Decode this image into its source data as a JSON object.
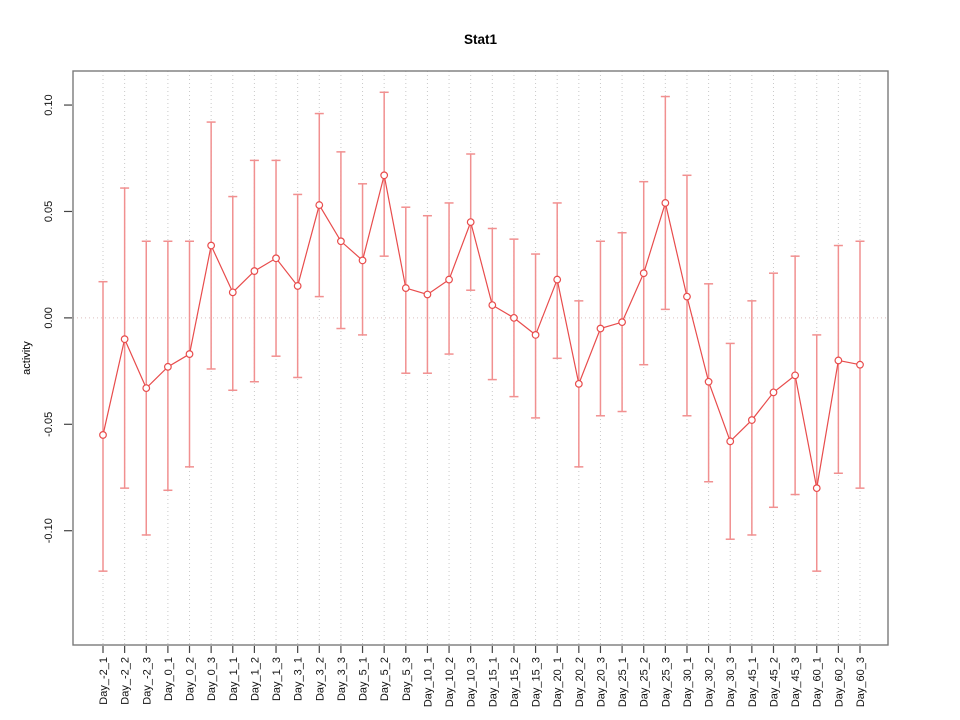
{
  "title": "Stat1",
  "chart_data": {
    "type": "line",
    "title": "Stat1",
    "xlabel": "",
    "ylabel": "activity",
    "marker": "open-circle",
    "error_bars": true,
    "grid": "vertical-dotted",
    "zero_line_dotted": true,
    "legend": "none",
    "ylim": [
      -0.1537,
      0.116
    ],
    "ytick_values": [
      0.1,
      0.05,
      0.0,
      -0.05,
      -0.1
    ],
    "ytick_labels": [
      "0.10",
      "0.05",
      "0.00",
      "-0.05",
      "-0.10"
    ],
    "categories": [
      "Day_-2_1",
      "Day_-2_2",
      "Day_-2_3",
      "Day_0_1",
      "Day_0_2",
      "Day_0_3",
      "Day_1_1",
      "Day_1_2",
      "Day_1_3",
      "Day_3_1",
      "Day_3_2",
      "Day_3_3",
      "Day_5_1",
      "Day_5_2",
      "Day_5_3",
      "Day_10_1",
      "Day_10_2",
      "Day_10_3",
      "Day_15_1",
      "Day_15_2",
      "Day_15_3",
      "Day_20_1",
      "Day_20_2",
      "Day_20_3",
      "Day_25_1",
      "Day_25_2",
      "Day_25_3",
      "Day_30_1",
      "Day_30_2",
      "Day_30_3",
      "Day_45_1",
      "Day_45_2",
      "Day_45_3",
      "Day_60_1",
      "Day_60_2",
      "Day_60_3"
    ],
    "series": [
      {
        "name": "activity",
        "values": [
          -0.055,
          -0.01,
          -0.033,
          -0.023,
          -0.017,
          0.034,
          0.012,
          0.022,
          0.028,
          0.015,
          0.053,
          0.036,
          0.027,
          0.067,
          0.014,
          0.011,
          0.018,
          0.045,
          0.006,
          0.0,
          -0.008,
          0.018,
          -0.031,
          -0.005,
          -0.002,
          0.021,
          0.054,
          0.01,
          -0.03,
          -0.058,
          -0.048,
          -0.035,
          -0.027,
          -0.08,
          -0.02,
          -0.022
        ],
        "error_high": [
          0.017,
          0.061,
          0.036,
          0.036,
          0.036,
          0.092,
          0.057,
          0.074,
          0.074,
          0.058,
          0.096,
          0.078,
          0.063,
          0.106,
          0.052,
          0.048,
          0.054,
          0.077,
          0.042,
          0.037,
          0.03,
          0.054,
          0.008,
          0.036,
          0.04,
          0.064,
          0.104,
          0.067,
          0.016,
          -0.012,
          0.008,
          0.021,
          0.029,
          -0.008,
          0.034,
          0.036
        ],
        "error_low": [
          -0.119,
          -0.08,
          -0.102,
          -0.081,
          -0.07,
          -0.024,
          -0.034,
          -0.03,
          -0.018,
          -0.028,
          0.01,
          -0.005,
          -0.008,
          0.029,
          -0.026,
          -0.026,
          -0.017,
          0.013,
          -0.029,
          -0.037,
          -0.047,
          -0.019,
          -0.07,
          -0.046,
          -0.044,
          -0.022,
          0.004,
          -0.046,
          -0.077,
          -0.104,
          -0.102,
          -0.089,
          -0.083,
          -0.119,
          -0.073,
          -0.08
        ]
      }
    ],
    "colors": {
      "line": "#e84c4c",
      "marker_fill": "#ffffff",
      "error_bar": "#f19090",
      "grid": "#c9c9c9",
      "zero_line": "#dcbfbf",
      "box": "#7a7a7a",
      "tick": "#444444",
      "text": "#111111",
      "background": "#ffffff"
    }
  }
}
